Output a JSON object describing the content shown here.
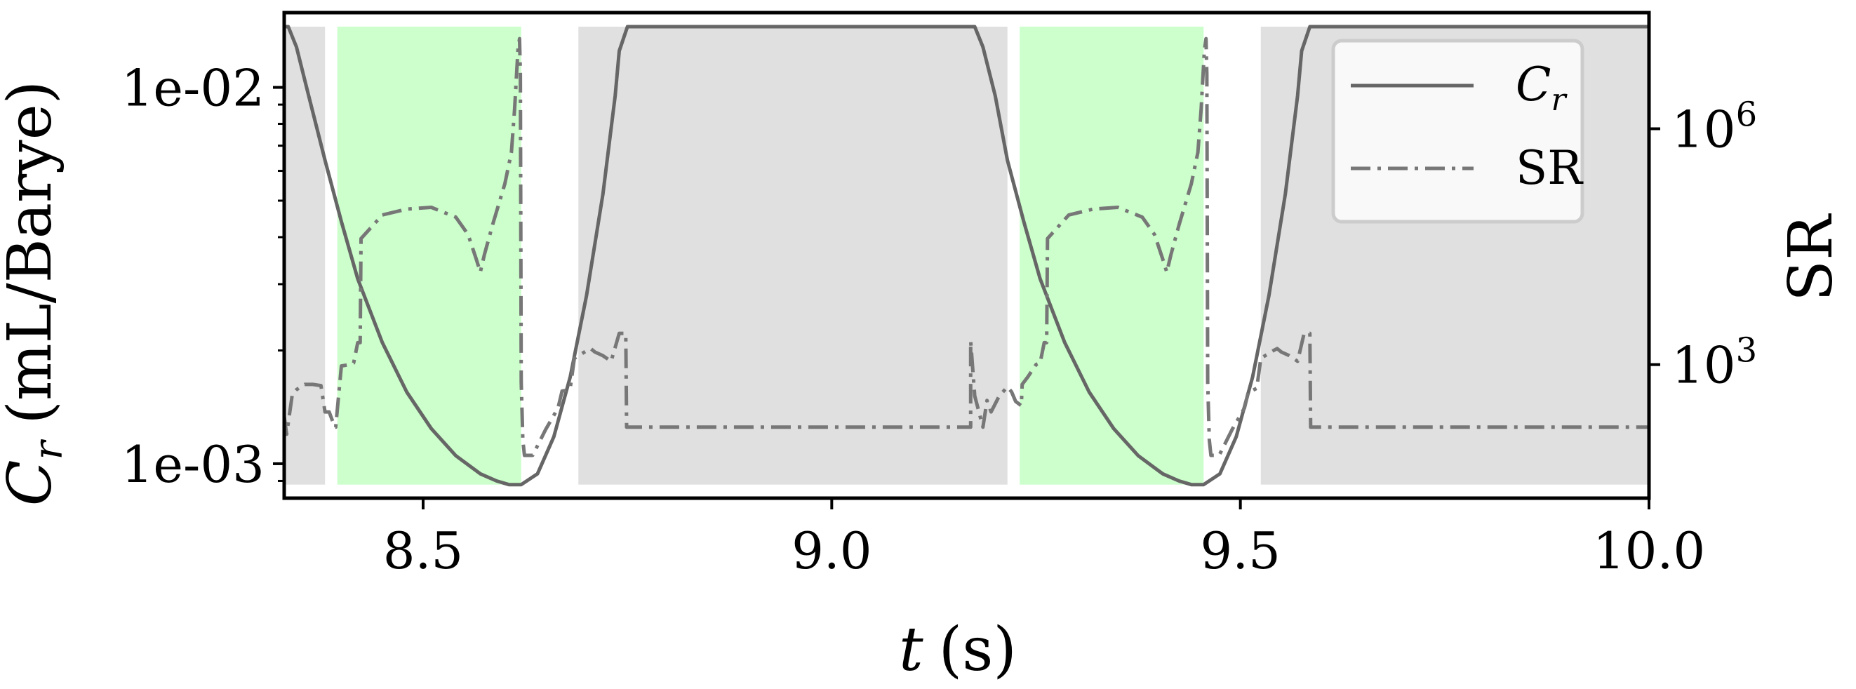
{
  "chart_data": {
    "type": "line",
    "xlabel_var": "t",
    "xlabel_unit": "(s)",
    "ylabel_left_var": "C",
    "ylabel_left_sub": "r",
    "ylabel_left_unit": "(mL/Barye)",
    "ylabel_right": "SR",
    "xlim": [
      8.33,
      10.0
    ],
    "ylim_left": [
      0.00081,
      0.0158
    ],
    "ylim_right": [
      20,
      30000000
    ],
    "left_scale": "log",
    "right_scale": "log",
    "x_ticks": [
      {
        "value": 8.5,
        "label": "8.5"
      },
      {
        "value": 9.0,
        "label": "9.0"
      },
      {
        "value": 9.5,
        "label": "9.5"
      },
      {
        "value": 10.0,
        "label": "10.0"
      }
    ],
    "left_ticks": [
      {
        "value": 0.01,
        "label": "1e-02"
      },
      {
        "value": 0.001,
        "label": "1e-03"
      }
    ],
    "right_ticks": [
      {
        "value": 1000000,
        "base": "10",
        "exp": "6"
      },
      {
        "value": 1000,
        "base": "10",
        "exp": "3"
      }
    ],
    "regions": [
      {
        "start": 8.33,
        "end": 8.38,
        "color": "#e0e0e0"
      },
      {
        "start": 8.395,
        "end": 8.62,
        "color": "#ccffcc"
      },
      {
        "start": 8.69,
        "end": 9.215,
        "color": "#e0e0e0"
      },
      {
        "start": 9.23,
        "end": 9.455,
        "color": "#ccffcc"
      },
      {
        "start": 9.525,
        "end": 10.0,
        "color": "#e0e0e0"
      }
    ],
    "region_ylim_left": [
      0.00088,
      0.0145
    ],
    "series": [
      {
        "name_var": "C",
        "name_sub": "r",
        "axis": "left",
        "style": "solid",
        "color": "#666666",
        "x": [
          8.33,
          8.335,
          8.345,
          8.36,
          8.38,
          8.4,
          8.42,
          8.45,
          8.48,
          8.51,
          8.54,
          8.57,
          8.59,
          8.605,
          8.62,
          8.64,
          8.66,
          8.68,
          8.7,
          8.72,
          8.735,
          8.74,
          8.75,
          9.17,
          9.175,
          9.185,
          9.2,
          9.215,
          9.235,
          9.255,
          9.285,
          9.315,
          9.345,
          9.375,
          9.405,
          9.425,
          9.44,
          9.455,
          9.475,
          9.495,
          9.515,
          9.535,
          9.555,
          9.57,
          9.575,
          9.585,
          10.0
        ],
        "y": [
          0.0145,
          0.0145,
          0.0128,
          0.0095,
          0.0064,
          0.0044,
          0.0031,
          0.0021,
          0.00155,
          0.00124,
          0.00105,
          0.00094,
          0.0009,
          0.00088,
          0.00088,
          0.00094,
          0.00118,
          0.0017,
          0.0028,
          0.0052,
          0.0095,
          0.0125,
          0.0145,
          0.0145,
          0.0145,
          0.0128,
          0.0095,
          0.0064,
          0.0044,
          0.0031,
          0.0021,
          0.00155,
          0.00124,
          0.00105,
          0.00094,
          0.0009,
          0.00088,
          0.00088,
          0.00094,
          0.00118,
          0.0017,
          0.0028,
          0.0052,
          0.0095,
          0.0125,
          0.0145,
          0.0145
        ]
      },
      {
        "name": "SR",
        "axis": "right",
        "style": "dashdot",
        "color": "#777777",
        "x": [
          8.33,
          8.333,
          8.34,
          8.345,
          8.355,
          8.365,
          8.375,
          8.38,
          8.385,
          8.392,
          8.393,
          8.4,
          8.41,
          8.415,
          8.42,
          8.423,
          8.424,
          8.45,
          8.48,
          8.51,
          8.54,
          8.555,
          8.565,
          8.57,
          8.575,
          8.585,
          8.6,
          8.608,
          8.612,
          8.616,
          8.618,
          8.619,
          8.62,
          8.622,
          8.624,
          8.634,
          8.65,
          8.665,
          8.67,
          8.675,
          8.68,
          8.685,
          8.7,
          8.705,
          8.71,
          8.72,
          8.73,
          8.74,
          8.748,
          8.749,
          8.75,
          8.76,
          9.17,
          9.17,
          9.175,
          9.185,
          9.19,
          9.195,
          9.205,
          9.215,
          9.22,
          9.225,
          9.232,
          9.233,
          9.24,
          9.25,
          9.255,
          9.26,
          9.263,
          9.264,
          9.29,
          9.32,
          9.35,
          9.38,
          9.395,
          9.405,
          9.41,
          9.415,
          9.425,
          9.44,
          9.448,
          9.452,
          9.456,
          9.458,
          9.459,
          9.46,
          9.462,
          9.464,
          9.474,
          9.49,
          9.505,
          9.51,
          9.515,
          9.52,
          9.525,
          9.54,
          9.545,
          9.55,
          9.56,
          9.57,
          9.578,
          9.585,
          9.586,
          9.59,
          10.0
        ],
        "y": [
          220,
          130,
          420,
          480,
          560,
          560,
          540,
          250,
          250,
          160,
          160,
          960,
          1000,
          1050,
          1900,
          1900,
          40000,
          80000,
          95000,
          100000,
          75000,
          45000,
          22000,
          15000,
          25000,
          60000,
          200000,
          500000,
          1800000,
          10000000,
          14000000,
          5000000,
          600,
          110,
          70,
          70,
          150,
          280,
          460,
          470,
          500,
          1200,
          1500,
          1600,
          1450,
          1300,
          1100,
          2500,
          2500,
          160,
          160,
          160,
          160,
          2000,
          400,
          160,
          350,
          250,
          400,
          520,
          450,
          340,
          300,
          560,
          700,
          1000,
          1050,
          1900,
          1900,
          40000,
          80000,
          95000,
          100000,
          75000,
          45000,
          22000,
          15000,
          25000,
          60000,
          200000,
          500000,
          1800000,
          10000000,
          14000000,
          5000000,
          600,
          110,
          70,
          70,
          150,
          280,
          460,
          470,
          500,
          1200,
          1500,
          1600,
          1450,
          1300,
          1100,
          2500,
          2500,
          160,
          160,
          160
        ]
      }
    ],
    "legend": {
      "placement": "top-right",
      "entries": [
        {
          "series": 0,
          "label_var": "C",
          "label_sub": "r"
        },
        {
          "series": 1,
          "label": "SR"
        }
      ]
    }
  }
}
